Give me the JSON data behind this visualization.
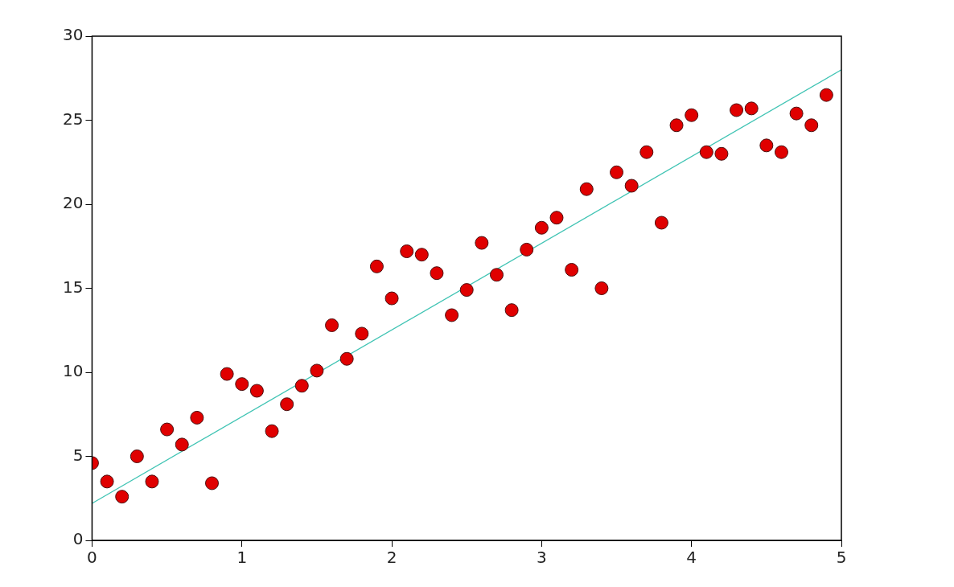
{
  "chart_data": {
    "type": "scatter",
    "xlim": [
      0,
      5
    ],
    "ylim": [
      0,
      30
    ],
    "xticks": [
      0,
      1,
      2,
      3,
      4,
      5
    ],
    "yticks": [
      0,
      5,
      10,
      15,
      20,
      25,
      30
    ],
    "grid": false,
    "marker": "circle",
    "series": [
      {
        "color": "#e00000",
        "x": [
          0,
          0.1,
          0.2,
          0.3,
          0.4,
          0.5,
          0.6,
          0.7,
          0.8,
          0.9,
          1.0,
          1.1,
          1.2,
          1.3,
          1.4,
          1.5,
          1.6,
          1.7,
          1.8,
          1.9,
          2.0,
          2.1,
          2.2,
          2.3,
          2.4,
          2.5,
          2.6,
          2.7,
          2.8,
          2.9,
          3.0,
          3.1,
          3.2,
          3.3,
          3.4,
          3.5,
          3.6,
          3.7,
          3.8,
          3.9,
          4.0,
          4.1,
          4.2,
          4.3,
          4.4,
          4.5,
          4.6,
          4.7,
          4.8,
          4.9
        ],
        "values": [
          4.6,
          3.5,
          2.6,
          5.0,
          3.5,
          6.6,
          5.7,
          7.3,
          3.4,
          9.9,
          9.3,
          8.9,
          6.5,
          8.1,
          9.2,
          10.1,
          12.8,
          10.8,
          12.3,
          16.3,
          14.4,
          17.2,
          17.0,
          15.9,
          13.4,
          14.9,
          17.7,
          15.8,
          13.7,
          17.3,
          18.6,
          19.2,
          16.1,
          20.9,
          15.0,
          21.9,
          21.1,
          23.1,
          18.9,
          24.7,
          25.3,
          23.1,
          23.0,
          25.6,
          25.7,
          23.5,
          23.1,
          25.4,
          24.7,
          26.5
        ]
      },
      {
        "type": "line",
        "color": "#40c4b4",
        "marker": "none",
        "line_style": "solid",
        "x": [
          0,
          5
        ],
        "values": [
          2.2,
          28.0
        ]
      }
    ]
  }
}
